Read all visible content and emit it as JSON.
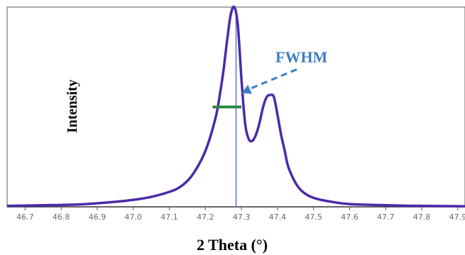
{
  "chart_data": {
    "type": "line",
    "xlabel": "2 Theta (°)",
    "ylabel": "Intensity",
    "xlim": [
      46.65,
      47.92
    ],
    "ylim": [
      0,
      1.0
    ],
    "x_ticks": [
      46.7,
      46.8,
      46.9,
      47.0,
      47.1,
      47.2,
      47.3,
      47.4,
      47.5,
      47.6,
      47.7,
      47.8,
      47.9
    ],
    "x_tick_labels": [
      "46.7",
      "46.8",
      "46.9",
      "47.0",
      "47.1",
      "47.2",
      "47.3",
      "47.4",
      "47.5",
      "47.6",
      "47.7",
      "47.8",
      "47.9"
    ],
    "grid": false,
    "legend": "none",
    "series": [
      {
        "color": "#4b2aa8",
        "x": [
          46.65,
          46.75,
          46.85,
          46.95,
          47.0,
          47.05,
          47.1,
          47.13,
          47.16,
          47.19,
          47.21,
          47.23,
          47.24,
          47.25,
          47.26,
          47.27,
          47.28,
          47.29,
          47.3,
          47.31,
          47.32,
          47.33,
          47.34,
          47.35,
          47.36,
          47.37,
          47.38,
          47.39,
          47.4,
          47.41,
          47.42,
          47.43,
          47.45,
          47.47,
          47.5,
          47.55,
          47.6,
          47.7,
          47.8,
          47.92
        ],
        "y": [
          0.005,
          0.008,
          0.012,
          0.025,
          0.035,
          0.05,
          0.075,
          0.1,
          0.15,
          0.24,
          0.33,
          0.46,
          0.56,
          0.68,
          0.83,
          0.96,
          1.0,
          0.91,
          0.64,
          0.42,
          0.34,
          0.33,
          0.36,
          0.42,
          0.5,
          0.55,
          0.56,
          0.55,
          0.46,
          0.36,
          0.28,
          0.2,
          0.12,
          0.075,
          0.045,
          0.025,
          0.014,
          0.008,
          0.005,
          0.003
        ]
      }
    ],
    "vertical_line": {
      "x": 47.285,
      "color": "#5b73d6"
    },
    "fwhm_marker": {
      "x_start": 47.22,
      "x_end": 47.3,
      "y": 0.5,
      "color": "#2e8b4a"
    },
    "annotations": [
      {
        "text": "FWHM",
        "color": "#3d7fc4",
        "arrow_to": {
          "x": 47.3,
          "y": 0.57
        }
      }
    ]
  }
}
